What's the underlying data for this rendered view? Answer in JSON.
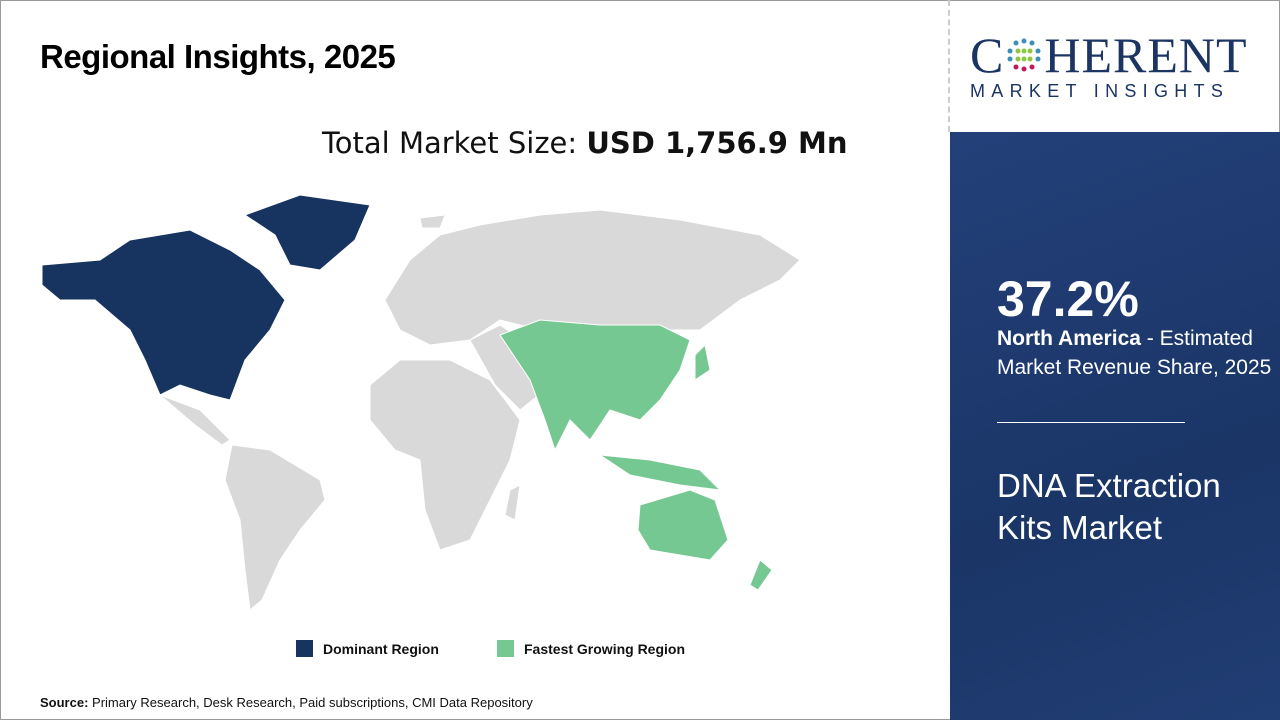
{
  "title": "Regional Insights, 2025",
  "total_label": "Total Market Size: ",
  "total_value": "USD 1,756.9 Mn",
  "legend": [
    {
      "label": "Dominant Region",
      "color": "#17335f"
    },
    {
      "label": "Fastest Growing Region",
      "color": "#76c893"
    }
  ],
  "source_label": "Source:",
  "source_text": " Primary Research, Desk Research, Paid subscriptions, CMI Data Repository",
  "logo": {
    "big_c": "C",
    "big_rest": "HERENT",
    "small": "MARKET INSIGHTS"
  },
  "panel": {
    "percent": "37.2%",
    "region": "North America",
    "desc": " - Estimated Market Revenue Share, 2025",
    "market": "DNA Extraction Kits Market"
  },
  "colors": {
    "dominant": "#17335f",
    "fastest": "#76c893",
    "other": "#d9d9d9",
    "panel": "#1e3a6e"
  }
}
